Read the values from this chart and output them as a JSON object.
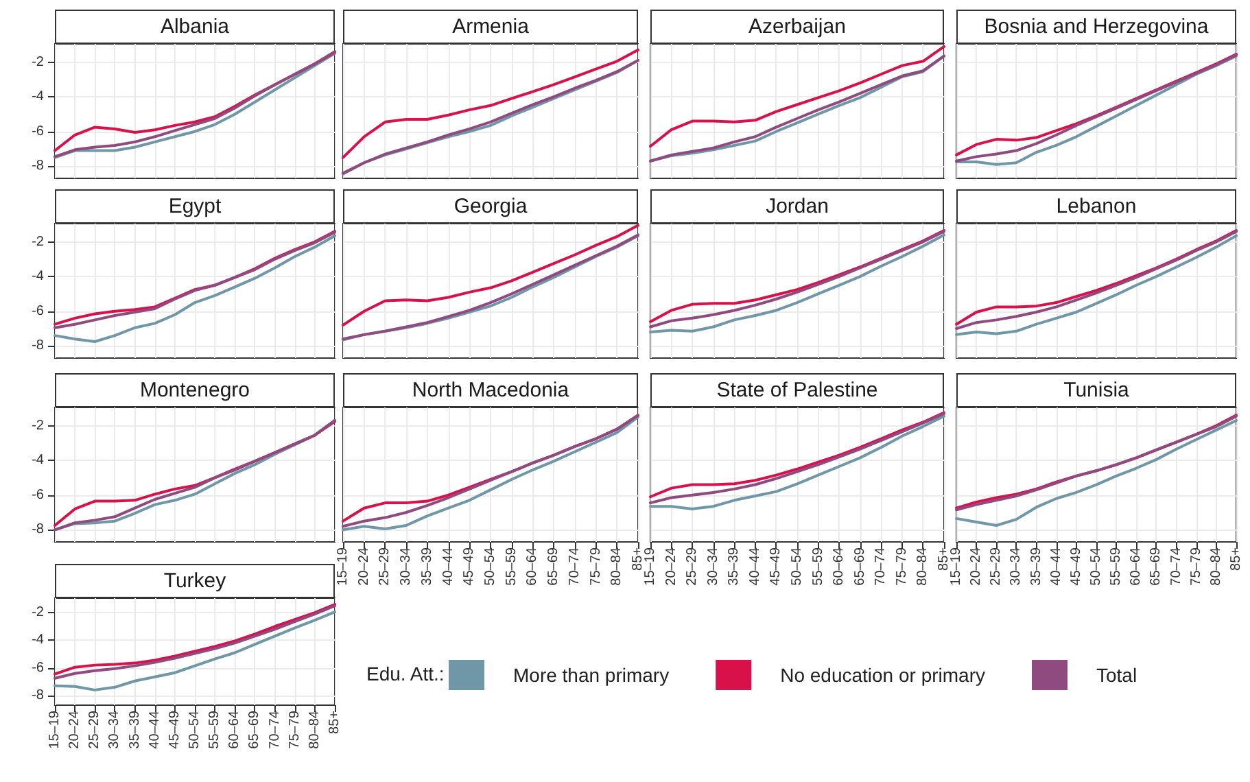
{
  "chart_data": [
    {
      "type": "line",
      "title": "Albania",
      "categories": [
        "15–19",
        "20–24",
        "25–29",
        "30–34",
        "35–39",
        "40–44",
        "45–49",
        "50–54",
        "55–59",
        "60–64",
        "65–69",
        "70–74",
        "75–79",
        "80–84",
        "85+"
      ],
      "ylim": [
        -8.7,
        -0.95
      ],
      "yticks": [
        -8,
        -6,
        -4,
        -2
      ],
      "grid": true,
      "tick_labels": "y",
      "legend": "bottom right",
      "legend_title": "Edu. Att.:",
      "series": [
        {
          "name": "More than primary",
          "color": "#6f97a8",
          "values": [
            -7.5,
            -7.1,
            -7.1,
            -7.1,
            -6.9,
            -6.6,
            -6.3,
            -6.0,
            -5.6,
            -5.0,
            -4.3,
            -3.6,
            -2.9,
            -2.2,
            -1.5
          ]
        },
        {
          "name": "No education or primary",
          "color": "#d9114a",
          "values": [
            -7.1,
            -6.2,
            -5.75,
            -5.85,
            -6.05,
            -5.9,
            -5.65,
            -5.45,
            -5.15,
            -4.55,
            -3.9,
            -3.3,
            -2.7,
            -2.1,
            -1.4
          ]
        },
        {
          "name": "Total",
          "color": "#8f4a7f",
          "values": [
            -7.45,
            -7.05,
            -6.9,
            -6.8,
            -6.6,
            -6.3,
            -5.95,
            -5.6,
            -5.25,
            -4.65,
            -3.95,
            -3.3,
            -2.7,
            -2.1,
            -1.45
          ]
        }
      ]
    },
    {
      "type": "line",
      "title": "Armenia",
      "categories": [
        "15–19",
        "20–24",
        "25–29",
        "30–34",
        "35–39",
        "40–44",
        "45–49",
        "50–54",
        "55–59",
        "60–64",
        "65–69",
        "70–74",
        "75–79",
        "80–84",
        "85+"
      ],
      "ylim": [
        -8.7,
        -0.95
      ],
      "yticks": [
        -8,
        -6,
        -4,
        -2
      ],
      "grid": true,
      "tick_labels": false,
      "series": [
        {
          "name": "More than primary",
          "color": "#6f97a8",
          "values": [
            -8.45,
            -7.8,
            -7.35,
            -7.0,
            -6.65,
            -6.3,
            -6.0,
            -5.65,
            -5.1,
            -4.6,
            -4.1,
            -3.6,
            -3.1,
            -2.6,
            -1.9
          ]
        },
        {
          "name": "No education or primary",
          "color": "#d9114a",
          "values": [
            -7.5,
            -6.3,
            -5.45,
            -5.3,
            -5.3,
            -5.05,
            -4.75,
            -4.5,
            -4.1,
            -3.7,
            -3.3,
            -2.85,
            -2.4,
            -1.95,
            -1.3
          ]
        },
        {
          "name": "Total",
          "color": "#8f4a7f",
          "values": [
            -8.4,
            -7.8,
            -7.3,
            -6.95,
            -6.6,
            -6.2,
            -5.85,
            -5.45,
            -4.95,
            -4.45,
            -4.0,
            -3.5,
            -3.05,
            -2.55,
            -1.9
          ]
        }
      ]
    },
    {
      "type": "line",
      "title": "Azerbaijan",
      "categories": [
        "15–19",
        "20–24",
        "25–29",
        "30–34",
        "35–39",
        "40–44",
        "45–49",
        "50–54",
        "55–59",
        "60–64",
        "65–69",
        "70–74",
        "75–79",
        "80–84",
        "85+"
      ],
      "ylim": [
        -8.7,
        -0.95
      ],
      "yticks": [
        -8,
        -6,
        -4,
        -2
      ],
      "grid": true,
      "tick_labels": false,
      "series": [
        {
          "name": "More than primary",
          "color": "#6f97a8",
          "values": [
            -7.7,
            -7.4,
            -7.25,
            -7.05,
            -6.8,
            -6.55,
            -6.0,
            -5.5,
            -5.0,
            -4.5,
            -4.05,
            -3.45,
            -2.85,
            -2.55,
            -1.65
          ]
        },
        {
          "name": "No education or primary",
          "color": "#d9114a",
          "values": [
            -6.85,
            -5.9,
            -5.4,
            -5.4,
            -5.45,
            -5.35,
            -4.85,
            -4.45,
            -4.05,
            -3.65,
            -3.2,
            -2.7,
            -2.2,
            -1.95,
            -1.1
          ]
        },
        {
          "name": "Total",
          "color": "#8f4a7f",
          "values": [
            -7.7,
            -7.35,
            -7.15,
            -6.95,
            -6.6,
            -6.3,
            -5.75,
            -5.25,
            -4.75,
            -4.3,
            -3.8,
            -3.3,
            -2.8,
            -2.5,
            -1.65
          ]
        }
      ]
    },
    {
      "type": "line",
      "title": "Bosnia and Herzegovina",
      "categories": [
        "15–19",
        "20–24",
        "25–29",
        "30–34",
        "35–39",
        "40–44",
        "45–49",
        "50–54",
        "55–59",
        "60–64",
        "65–69",
        "70–74",
        "75–79",
        "80–84",
        "85+"
      ],
      "ylim": [
        -8.7,
        -0.95
      ],
      "yticks": [
        -8,
        -6,
        -4,
        -2
      ],
      "grid": true,
      "tick_labels": false,
      "series": [
        {
          "name": "More than primary",
          "color": "#6f97a8",
          "values": [
            -7.75,
            -7.75,
            -7.9,
            -7.8,
            -7.2,
            -6.8,
            -6.3,
            -5.7,
            -5.1,
            -4.5,
            -3.9,
            -3.3,
            -2.7,
            -2.2,
            -1.65
          ]
        },
        {
          "name": "No education or primary",
          "color": "#d9114a",
          "values": [
            -7.35,
            -6.75,
            -6.45,
            -6.5,
            -6.35,
            -5.95,
            -5.55,
            -5.1,
            -4.6,
            -4.1,
            -3.6,
            -3.1,
            -2.6,
            -2.1,
            -1.55
          ]
        },
        {
          "name": "Total",
          "color": "#8f4a7f",
          "values": [
            -7.7,
            -7.45,
            -7.3,
            -7.1,
            -6.7,
            -6.2,
            -5.65,
            -5.15,
            -4.65,
            -4.15,
            -3.65,
            -3.15,
            -2.65,
            -2.15,
            -1.6
          ]
        }
      ]
    },
    {
      "type": "line",
      "title": "Egypt",
      "categories": [
        "15–19",
        "20–24",
        "25–29",
        "30–34",
        "35–39",
        "40–44",
        "45–49",
        "50–54",
        "55–59",
        "60–64",
        "65–69",
        "70–74",
        "75–79",
        "80–84",
        "85+"
      ],
      "ylim": [
        -8.7,
        -0.95
      ],
      "yticks": [
        -8,
        -6,
        -4,
        -2
      ],
      "grid": true,
      "tick_labels": "y",
      "series": [
        {
          "name": "More than primary",
          "color": "#6f97a8",
          "values": [
            -7.4,
            -7.6,
            -7.75,
            -7.4,
            -6.95,
            -6.7,
            -6.2,
            -5.5,
            -5.1,
            -4.6,
            -4.1,
            -3.5,
            -2.85,
            -2.3,
            -1.65
          ]
        },
        {
          "name": "No education or primary",
          "color": "#d9114a",
          "values": [
            -6.75,
            -6.4,
            -6.15,
            -6.0,
            -5.9,
            -5.75,
            -5.25,
            -4.75,
            -4.5,
            -4.05,
            -3.55,
            -2.95,
            -2.45,
            -2.0,
            -1.4
          ]
        },
        {
          "name": "Total",
          "color": "#8f4a7f",
          "values": [
            -6.95,
            -6.75,
            -6.5,
            -6.25,
            -6.05,
            -5.85,
            -5.3,
            -4.8,
            -4.5,
            -4.05,
            -3.6,
            -3.0,
            -2.5,
            -2.05,
            -1.45
          ]
        }
      ]
    },
    {
      "type": "line",
      "title": "Georgia",
      "categories": [
        "15–19",
        "20–24",
        "25–29",
        "30–34",
        "35–39",
        "40–44",
        "45–49",
        "50–54",
        "55–59",
        "60–64",
        "65–69",
        "70–74",
        "75–79",
        "80–84",
        "85+"
      ],
      "ylim": [
        -8.7,
        -0.95
      ],
      "yticks": [
        -8,
        -6,
        -4,
        -2
      ],
      "grid": true,
      "tick_labels": false,
      "series": [
        {
          "name": "More than primary",
          "color": "#6f97a8",
          "values": [
            -7.65,
            -7.35,
            -7.15,
            -6.95,
            -6.7,
            -6.4,
            -6.05,
            -5.7,
            -5.2,
            -4.6,
            -4.05,
            -3.45,
            -2.85,
            -2.3,
            -1.65
          ]
        },
        {
          "name": "No education or primary",
          "color": "#d9114a",
          "values": [
            -6.8,
            -6.0,
            -5.4,
            -5.35,
            -5.4,
            -5.2,
            -4.9,
            -4.65,
            -4.25,
            -3.75,
            -3.25,
            -2.75,
            -2.2,
            -1.7,
            -1.05
          ]
        },
        {
          "name": "Total",
          "color": "#8f4a7f",
          "values": [
            -7.6,
            -7.35,
            -7.15,
            -6.9,
            -6.65,
            -6.3,
            -5.95,
            -5.5,
            -5.0,
            -4.45,
            -3.9,
            -3.35,
            -2.8,
            -2.25,
            -1.6
          ]
        }
      ]
    },
    {
      "type": "line",
      "title": "Jordan",
      "categories": [
        "15–19",
        "20–24",
        "25–29",
        "30–34",
        "35–39",
        "40–44",
        "45–49",
        "50–54",
        "55–59",
        "60–64",
        "65–69",
        "70–74",
        "75–79",
        "80–84",
        "85+"
      ],
      "ylim": [
        -8.7,
        -0.95
      ],
      "yticks": [
        -8,
        -6,
        -4,
        -2
      ],
      "grid": true,
      "tick_labels": false,
      "series": [
        {
          "name": "More than primary",
          "color": "#6f97a8",
          "values": [
            -7.2,
            -7.1,
            -7.15,
            -6.9,
            -6.5,
            -6.25,
            -5.95,
            -5.5,
            -5.0,
            -4.5,
            -4.0,
            -3.4,
            -2.85,
            -2.25,
            -1.6
          ]
        },
        {
          "name": "No education or primary",
          "color": "#d9114a",
          "values": [
            -6.6,
            -5.95,
            -5.6,
            -5.55,
            -5.55,
            -5.35,
            -5.05,
            -4.75,
            -4.35,
            -3.9,
            -3.45,
            -2.95,
            -2.45,
            -1.95,
            -1.35
          ]
        },
        {
          "name": "Total",
          "color": "#8f4a7f",
          "values": [
            -6.9,
            -6.55,
            -6.4,
            -6.2,
            -5.95,
            -5.65,
            -5.3,
            -4.9,
            -4.45,
            -4.0,
            -3.5,
            -3.0,
            -2.5,
            -2.0,
            -1.4
          ]
        }
      ]
    },
    {
      "type": "line",
      "title": "Lebanon",
      "categories": [
        "15–19",
        "20–24",
        "25–29",
        "30–34",
        "35–39",
        "40–44",
        "45–49",
        "50–54",
        "55–59",
        "60–64",
        "65–69",
        "70–74",
        "75–79",
        "80–84",
        "85+"
      ],
      "ylim": [
        -8.7,
        -0.95
      ],
      "yticks": [
        -8,
        -6,
        -4,
        -2
      ],
      "grid": true,
      "tick_labels": false,
      "series": [
        {
          "name": "More than primary",
          "color": "#6f97a8",
          "values": [
            -7.35,
            -7.2,
            -7.3,
            -7.15,
            -6.75,
            -6.4,
            -6.05,
            -5.55,
            -5.05,
            -4.5,
            -4.0,
            -3.45,
            -2.9,
            -2.3,
            -1.65
          ]
        },
        {
          "name": "No education or primary",
          "color": "#d9114a",
          "values": [
            -6.75,
            -6.05,
            -5.75,
            -5.75,
            -5.7,
            -5.5,
            -5.15,
            -4.8,
            -4.4,
            -3.95,
            -3.5,
            -3.0,
            -2.45,
            -1.95,
            -1.35
          ]
        },
        {
          "name": "Total",
          "color": "#8f4a7f",
          "values": [
            -7.0,
            -6.65,
            -6.5,
            -6.3,
            -6.05,
            -5.75,
            -5.35,
            -4.95,
            -4.5,
            -4.05,
            -3.55,
            -3.05,
            -2.5,
            -2.0,
            -1.4
          ]
        }
      ]
    },
    {
      "type": "line",
      "title": "Montenegro",
      "categories": [
        "15–19",
        "20–24",
        "25–29",
        "30–34",
        "35–39",
        "40–44",
        "45–49",
        "50–54",
        "55–59",
        "60–64",
        "65–69",
        "70–74",
        "75–79",
        "80–84",
        "85+"
      ],
      "ylim": [
        -8.7,
        -0.95
      ],
      "yticks": [
        -8,
        -6,
        -4,
        -2
      ],
      "grid": true,
      "tick_labels": "y",
      "series": [
        {
          "name": "More than primary",
          "color": "#6f97a8",
          "values": [
            -8.0,
            -7.65,
            -7.6,
            -7.5,
            -7.05,
            -6.55,
            -6.3,
            -5.95,
            -5.35,
            -4.75,
            -4.25,
            -3.65,
            -3.1,
            -2.55,
            -1.7
          ]
        },
        {
          "name": "No education or primary",
          "color": "#d9114a",
          "values": [
            -7.75,
            -6.8,
            -6.35,
            -6.35,
            -6.3,
            -5.95,
            -5.65,
            -5.45,
            -5.0,
            -4.5,
            -4.05,
            -3.55,
            -3.05,
            -2.55,
            -1.75
          ]
        },
        {
          "name": "Total",
          "color": "#8f4a7f",
          "values": [
            -8.0,
            -7.6,
            -7.45,
            -7.25,
            -6.75,
            -6.25,
            -5.9,
            -5.55,
            -5.0,
            -4.55,
            -4.05,
            -3.55,
            -3.05,
            -2.55,
            -1.7
          ]
        }
      ]
    },
    {
      "type": "line",
      "title": "North Macedonia",
      "categories": [
        "15–19",
        "20–24",
        "25–29",
        "30–34",
        "35–39",
        "40–44",
        "45–49",
        "50–54",
        "55–59",
        "60–64",
        "65–69",
        "70–74",
        "75–79",
        "80–84",
        "85+"
      ],
      "ylim": [
        -8.7,
        -0.95
      ],
      "yticks": [
        -8,
        -6,
        -4,
        -2
      ],
      "grid": true,
      "tick_labels": "x",
      "series": [
        {
          "name": "More than primary",
          "color": "#6f97a8",
          "values": [
            -8.0,
            -7.8,
            -7.95,
            -7.75,
            -7.2,
            -6.75,
            -6.3,
            -5.7,
            -5.1,
            -4.55,
            -4.05,
            -3.5,
            -2.95,
            -2.4,
            -1.5
          ]
        },
        {
          "name": "No education or primary",
          "color": "#d9114a",
          "values": [
            -7.5,
            -6.75,
            -6.45,
            -6.45,
            -6.35,
            -6.0,
            -5.55,
            -5.1,
            -4.65,
            -4.15,
            -3.7,
            -3.2,
            -2.75,
            -2.2,
            -1.4
          ]
        },
        {
          "name": "Total",
          "color": "#8f4a7f",
          "values": [
            -7.8,
            -7.5,
            -7.3,
            -7.0,
            -6.6,
            -6.15,
            -5.65,
            -5.15,
            -4.65,
            -4.15,
            -3.7,
            -3.2,
            -2.75,
            -2.2,
            -1.4
          ]
        }
      ]
    },
    {
      "type": "line",
      "title": "State of Palestine",
      "categories": [
        "15–19",
        "20–24",
        "25–29",
        "30–34",
        "35–39",
        "40–44",
        "45–49",
        "50–54",
        "55–59",
        "60–64",
        "65–69",
        "70–74",
        "75–79",
        "80–84",
        "85+"
      ],
      "ylim": [
        -8.7,
        -0.95
      ],
      "yticks": [
        -8,
        -6,
        -4,
        -2
      ],
      "grid": true,
      "tick_labels": "x",
      "series": [
        {
          "name": "More than primary",
          "color": "#6f97a8",
          "values": [
            -6.65,
            -6.65,
            -6.8,
            -6.65,
            -6.3,
            -6.05,
            -5.8,
            -5.35,
            -4.85,
            -4.35,
            -3.85,
            -3.25,
            -2.6,
            -2.05,
            -1.45
          ]
        },
        {
          "name": "No education or primary",
          "color": "#d9114a",
          "values": [
            -6.1,
            -5.6,
            -5.4,
            -5.4,
            -5.35,
            -5.15,
            -4.85,
            -4.5,
            -4.1,
            -3.7,
            -3.25,
            -2.75,
            -2.25,
            -1.8,
            -1.25
          ]
        },
        {
          "name": "Total",
          "color": "#8f4a7f",
          "values": [
            -6.45,
            -6.15,
            -6.0,
            -5.85,
            -5.65,
            -5.4,
            -5.05,
            -4.65,
            -4.25,
            -3.8,
            -3.35,
            -2.85,
            -2.35,
            -1.85,
            -1.3
          ]
        }
      ]
    },
    {
      "type": "line",
      "title": "Tunisia",
      "categories": [
        "15–19",
        "20–24",
        "25–29",
        "30–34",
        "35–39",
        "40–44",
        "45–49",
        "50–54",
        "55–59",
        "60–64",
        "65–69",
        "70–74",
        "75–79",
        "80–84",
        "85+"
      ],
      "ylim": [
        -8.7,
        -0.95
      ],
      "yticks": [
        -8,
        -6,
        -4,
        -2
      ],
      "grid": true,
      "tick_labels": "x",
      "series": [
        {
          "name": "More than primary",
          "color": "#6f97a8",
          "values": [
            -7.35,
            -7.55,
            -7.75,
            -7.4,
            -6.7,
            -6.2,
            -5.85,
            -5.4,
            -4.9,
            -4.45,
            -3.95,
            -3.35,
            -2.8,
            -2.25,
            -1.7
          ]
        },
        {
          "name": "No education or primary",
          "color": "#d9114a",
          "values": [
            -6.75,
            -6.4,
            -6.15,
            -5.95,
            -5.65,
            -5.25,
            -4.9,
            -4.6,
            -4.25,
            -3.85,
            -3.4,
            -2.95,
            -2.5,
            -2.0,
            -1.4
          ]
        },
        {
          "name": "Total",
          "color": "#8f4a7f",
          "values": [
            -6.85,
            -6.55,
            -6.3,
            -6.05,
            -5.7,
            -5.3,
            -4.9,
            -4.6,
            -4.25,
            -3.85,
            -3.4,
            -2.95,
            -2.5,
            -2.05,
            -1.45
          ]
        }
      ]
    },
    {
      "type": "line",
      "title": "Turkey",
      "categories": [
        "15–19",
        "20–24",
        "25–29",
        "30–34",
        "35–39",
        "40–44",
        "45–49",
        "50–54",
        "55–59",
        "60–64",
        "65–69",
        "70–74",
        "75–79",
        "80–84",
        "85+"
      ],
      "ylim": [
        -8.7,
        -0.95
      ],
      "yticks": [
        -8,
        -6,
        -4,
        -2
      ],
      "grid": true,
      "series": [
        {
          "name": "More than primary",
          "color": "#6f97a8",
          "values": [
            -7.3,
            -7.35,
            -7.6,
            -7.4,
            -6.95,
            -6.65,
            -6.35,
            -5.85,
            -5.35,
            -4.9,
            -4.3,
            -3.7,
            -3.1,
            -2.55,
            -1.95
          ]
        },
        {
          "name": "No education or primary",
          "color": "#d9114a",
          "values": [
            -6.45,
            -5.95,
            -5.8,
            -5.75,
            -5.65,
            -5.45,
            -5.15,
            -4.8,
            -4.45,
            -4.05,
            -3.55,
            -3.0,
            -2.5,
            -2.0,
            -1.4
          ]
        },
        {
          "name": "Total",
          "color": "#8f4a7f",
          "values": [
            -6.75,
            -6.4,
            -6.2,
            -6.05,
            -5.85,
            -5.6,
            -5.3,
            -4.95,
            -4.6,
            -4.2,
            -3.7,
            -3.2,
            -2.65,
            -2.1,
            -1.5
          ]
        }
      ]
    }
  ]
}
